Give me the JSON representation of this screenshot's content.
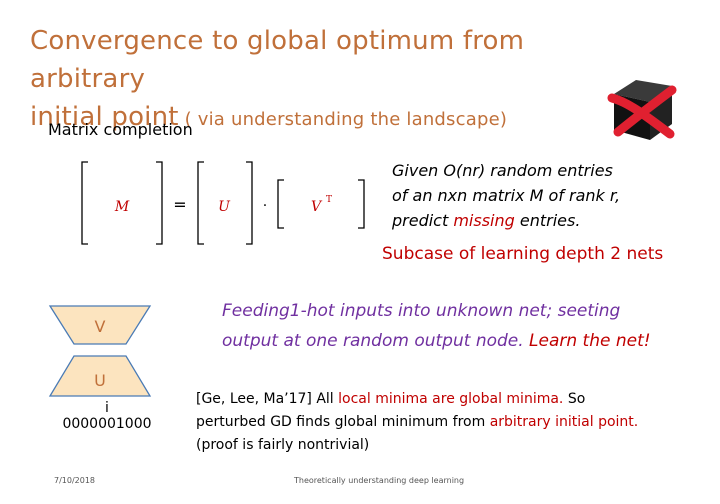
{
  "title": {
    "line1": "Convergence to global optimum from arbitrary",
    "line2_main": "initial point",
    "line2_sub": " ( via understanding the landscape)"
  },
  "cube_icon": "black-box-crossed-out-icon",
  "heading": "Matrix completion",
  "equation": {
    "M": "M",
    "equals": "=",
    "U": "U",
    "dot": "·",
    "VT": "V",
    "T": "T"
  },
  "given": {
    "line1": "Given O(nr) random entries",
    "line2": "of an nxn matrix M of rank r,",
    "line3_pre": "predict ",
    "line3_missing": "missing",
    "line3_post": " entries."
  },
  "subcase": "Subcase of learning depth 2 nets",
  "feeding": {
    "line1": "Feeding1-hot inputs into unknown net; seeting",
    "line2_pre": "output at one random output  node. ",
    "line2_post": "Learn the net!"
  },
  "net": {
    "top_label": "V",
    "bottom_label": "U",
    "index": "i",
    "bits": "0000001000"
  },
  "reference": {
    "cite": "[Ge, Lee, Ma’17]  All ",
    "local": "local minima are global minima.",
    "so": " So",
    "line2_pre": "perturbed GD finds global minimum from ",
    "arbitrary": "arbitrary initial point.",
    "line3": "(proof is fairly nontrivial)"
  },
  "footer": {
    "date": "7/10/2018",
    "center": "Theoretically understanding deep learning"
  },
  "colors": {
    "title": "#c0703a",
    "red": "#c00000",
    "purple": "#7030a0",
    "trapezoid_fill": "#fce4bf",
    "trapezoid_stroke": "#4a7bb5",
    "bracket": "#000000"
  }
}
